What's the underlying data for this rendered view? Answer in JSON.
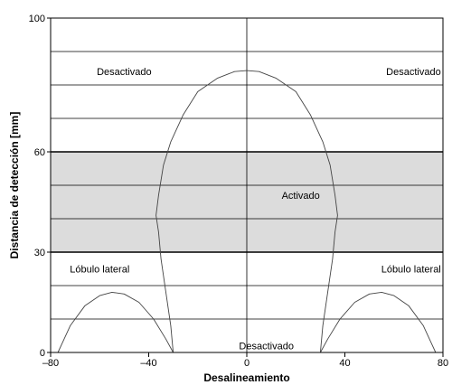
{
  "chart_data": {
    "type": "line",
    "xlabel": "Desalineamiento",
    "ylabel": "Distancia de detección [mm]",
    "xlim": [
      -80,
      80
    ],
    "ylim": [
      0,
      100
    ],
    "x_ticks": [
      {
        "value": -80,
        "label": "–80"
      },
      {
        "value": -40,
        "label": "–40"
      },
      {
        "value": 0,
        "label": "0"
      },
      {
        "value": 40,
        "label": "40"
      },
      {
        "value": 80,
        "label": "80"
      }
    ],
    "y_ticks": [
      {
        "value": 0,
        "label": "0"
      },
      {
        "value": 30,
        "label": "30"
      },
      {
        "value": 60,
        "label": "60"
      },
      {
        "value": 100,
        "label": "100"
      }
    ],
    "y_gridlines": [
      10,
      20,
      30,
      40,
      50,
      60,
      70,
      80,
      90,
      100
    ],
    "y_heavy_gridlines": [
      30,
      60
    ],
    "shaded_band": {
      "y_from": 30,
      "y_to": 60,
      "color": "#dcdcdc"
    },
    "grid": true,
    "series": [
      {
        "points": [
          [
            -30,
            0
          ],
          [
            -31,
            8
          ],
          [
            -33,
            18
          ],
          [
            -35,
            28
          ],
          [
            -36,
            36
          ],
          [
            -37,
            41
          ],
          [
            -36,
            47
          ],
          [
            -34,
            56
          ],
          [
            -31,
            63
          ],
          [
            -26,
            71
          ],
          [
            -20,
            78
          ],
          [
            -12,
            82
          ],
          [
            -5,
            84
          ],
          [
            0,
            84.3
          ],
          [
            5,
            84
          ],
          [
            12,
            82
          ],
          [
            20,
            78
          ],
          [
            26,
            71
          ],
          [
            31,
            63
          ],
          [
            34,
            56
          ],
          [
            36,
            47
          ],
          [
            37,
            41
          ],
          [
            36,
            36
          ],
          [
            35,
            28
          ],
          [
            33,
            18
          ],
          [
            31,
            8
          ],
          [
            30,
            0
          ]
        ]
      },
      {
        "points": [
          [
            -77,
            0
          ],
          [
            -72,
            8
          ],
          [
            -66,
            14
          ],
          [
            -60,
            17
          ],
          [
            -55,
            18
          ],
          [
            -50,
            17.5
          ],
          [
            -44,
            15
          ],
          [
            -38,
            10
          ],
          [
            -33,
            4
          ],
          [
            -30,
            0
          ]
        ]
      },
      {
        "points": [
          [
            30,
            0
          ],
          [
            33,
            4
          ],
          [
            38,
            10
          ],
          [
            44,
            15
          ],
          [
            50,
            17.5
          ],
          [
            55,
            18
          ],
          [
            60,
            17
          ],
          [
            66,
            14
          ],
          [
            72,
            8
          ],
          [
            77,
            0
          ]
        ]
      }
    ],
    "annotations": [
      {
        "text": "Desactivado",
        "x": -50,
        "y": 84
      },
      {
        "text": "Desactivado",
        "x": 68,
        "y": 84
      },
      {
        "text": "Activado",
        "x": 22,
        "y": 47
      },
      {
        "text": "Lóbulo lateral",
        "x": -60,
        "y": 25
      },
      {
        "text": "Lóbulo lateral",
        "x": 67,
        "y": 25
      },
      {
        "text": "Desactivado",
        "x": 8,
        "y": 2
      }
    ]
  },
  "colors": {
    "band": "#dcdcdc",
    "line": "#000000",
    "curve": "#444444"
  }
}
